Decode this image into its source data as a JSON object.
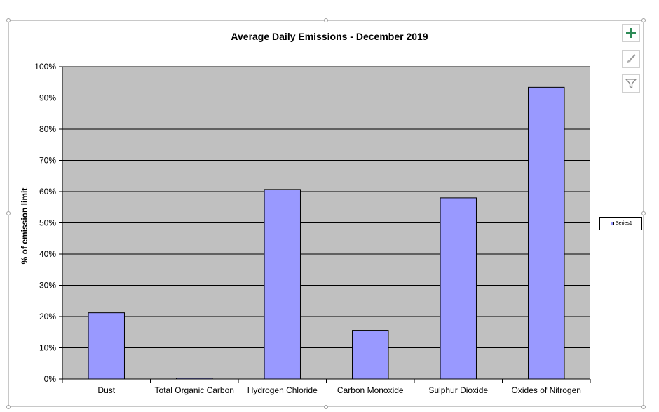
{
  "chart_data": {
    "type": "bar",
    "title": "Average Daily Emissions - December 2019",
    "xlabel": "",
    "ylabel": "% of emission limit",
    "categories": [
      "Dust",
      "Total Organic Carbon",
      "Hydrogen Chloride",
      "Carbon Monoxide",
      "Sulphur Dioxide",
      "Oxides of Nitrogen"
    ],
    "series": [
      {
        "name": "Series1",
        "values": [
          21.2,
          0.3,
          60.7,
          15.6,
          58.0,
          93.4
        ],
        "color": "#9999ff"
      }
    ],
    "ylim": [
      0,
      100
    ],
    "yticks": [
      0,
      10,
      20,
      30,
      40,
      50,
      60,
      70,
      80,
      90,
      100
    ],
    "ytick_labels": [
      "0%",
      "10%",
      "20%",
      "30%",
      "40%",
      "50%",
      "60%",
      "70%",
      "80%",
      "90%",
      "100%"
    ],
    "grid": true,
    "plot_background": "#c0c0c0",
    "legend_position": "right",
    "legend_label": "Series1"
  },
  "chart_tools": {
    "add_icon": "plus-icon",
    "style_icon": "brush-icon",
    "filter_icon": "filter-icon",
    "accent_color": "#2e8b57"
  }
}
